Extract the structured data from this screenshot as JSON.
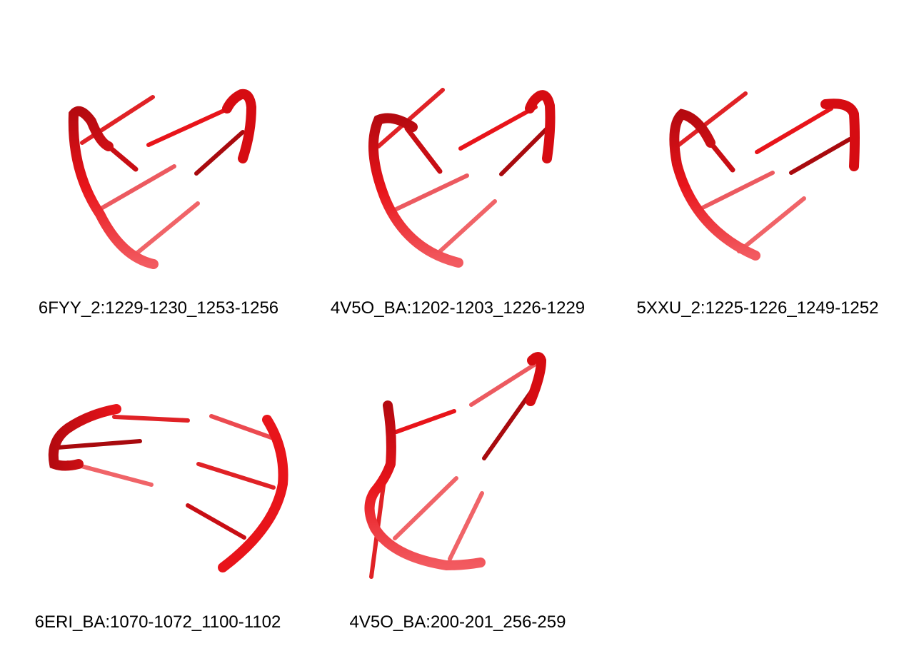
{
  "colors": {
    "backbone": "#e8141a",
    "backbone_dark": "#a80a0e",
    "base": "#e8343a",
    "base_faded": "#f06468",
    "background": "#ffffff"
  },
  "structures": [
    {
      "label": "6FYY_2:1229-1230_1253-1256"
    },
    {
      "label": "4V5O_BA:1202-1203_1226-1229"
    },
    {
      "label": "5XXU_2:1225-1226_1249-1252"
    },
    {
      "label": "6ERI_BA:1070-1072_1100-1102"
    },
    {
      "label": "4V5O_BA:200-201_256-259"
    }
  ]
}
